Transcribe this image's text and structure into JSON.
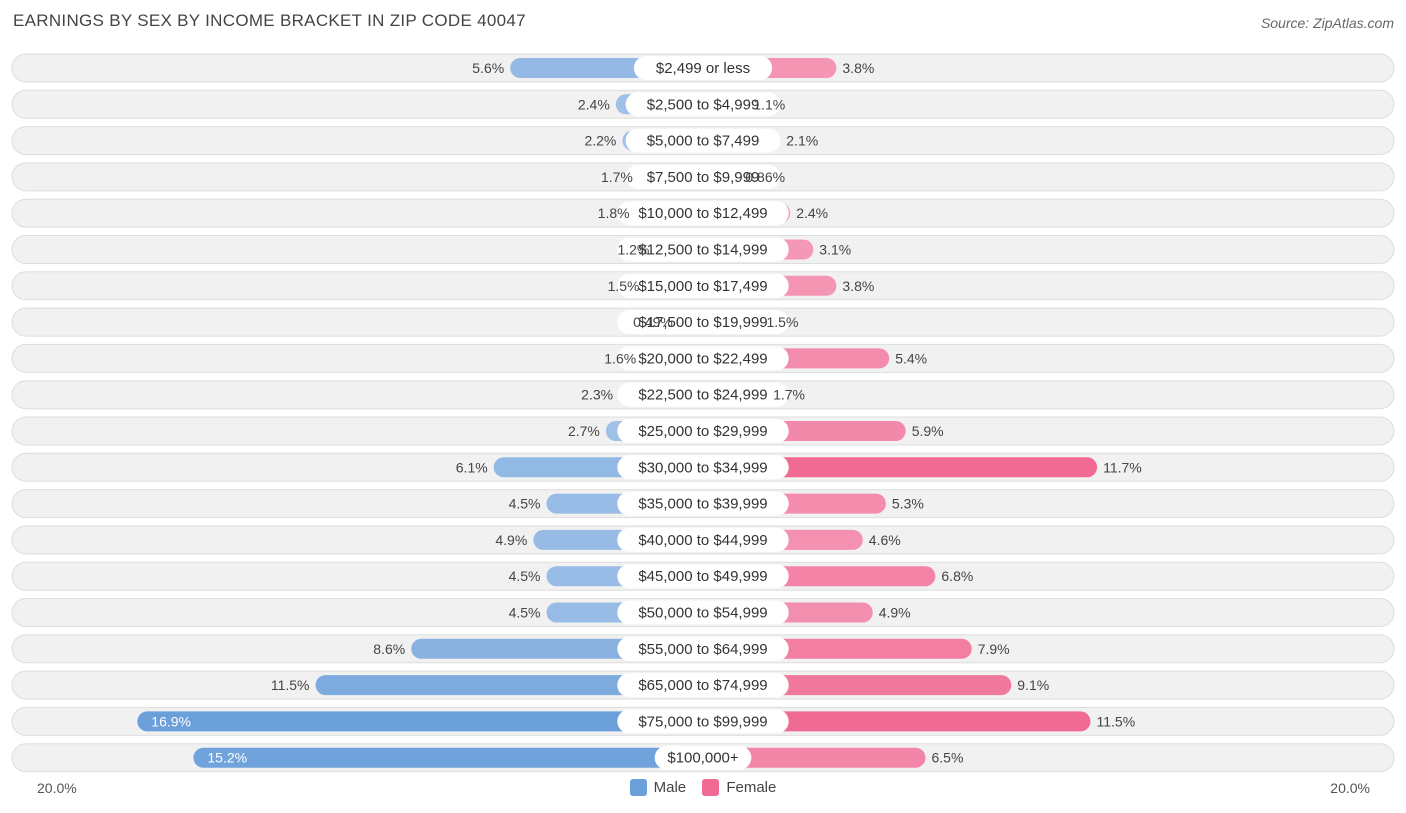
{
  "header": {
    "title": "EARNINGS BY SEX BY INCOME BRACKET IN ZIP CODE 40047",
    "source": "Source: ZipAtlas.com"
  },
  "axis": {
    "left_label": "20.0%",
    "right_label": "20.0%"
  },
  "legend": {
    "male_label": "Male",
    "female_label": "Female"
  },
  "colors": {
    "male_light": "#a9c6ea",
    "male_dark": "#6a9fd9",
    "female_light": "#f6a9c2",
    "female_dark": "#f06a93",
    "row_bg": "#f1f1f1",
    "row_border": "#dddddd"
  },
  "chart_data": {
    "type": "bar",
    "orientation": "horizontal-diverging",
    "title": "EARNINGS BY SEX BY INCOME BRACKET IN ZIP CODE 40047",
    "xlim": [
      -20,
      20
    ],
    "categories": [
      "$2,499 or less",
      "$2,500 to $4,999",
      "$5,000 to $7,499",
      "$7,500 to $9,999",
      "$10,000 to $12,499",
      "$12,500 to $14,999",
      "$15,000 to $17,499",
      "$17,500 to $19,999",
      "$20,000 to $22,499",
      "$22,500 to $24,999",
      "$25,000 to $29,999",
      "$30,000 to $34,999",
      "$35,000 to $39,999",
      "$40,000 to $44,999",
      "$45,000 to $49,999",
      "$50,000 to $54,999",
      "$55,000 to $64,999",
      "$65,000 to $74,999",
      "$75,000 to $99,999",
      "$100,000+"
    ],
    "series": [
      {
        "name": "Male",
        "values": [
          5.6,
          2.4,
          2.2,
          1.7,
          1.8,
          1.2,
          1.5,
          0.49,
          1.6,
          2.3,
          2.7,
          6.1,
          4.5,
          4.9,
          4.5,
          4.5,
          8.6,
          11.5,
          16.9,
          15.2
        ],
        "labels": [
          "5.6%",
          "2.4%",
          "2.2%",
          "1.7%",
          "1.8%",
          "1.2%",
          "1.5%",
          "0.49%",
          "1.6%",
          "2.3%",
          "2.7%",
          "6.1%",
          "4.5%",
          "4.9%",
          "4.5%",
          "4.5%",
          "8.6%",
          "11.5%",
          "16.9%",
          "15.2%"
        ]
      },
      {
        "name": "Female",
        "values": [
          3.8,
          1.1,
          2.1,
          0.86,
          2.4,
          3.1,
          3.8,
          1.5,
          5.4,
          1.7,
          5.9,
          11.7,
          5.3,
          4.6,
          6.8,
          4.9,
          7.9,
          9.1,
          11.5,
          6.5
        ],
        "labels": [
          "3.8%",
          "1.1%",
          "2.1%",
          "0.86%",
          "2.4%",
          "3.1%",
          "3.8%",
          "1.5%",
          "5.4%",
          "1.7%",
          "5.9%",
          "11.7%",
          "5.3%",
          "4.6%",
          "6.8%",
          "4.9%",
          "7.9%",
          "9.1%",
          "11.5%",
          "6.5%"
        ]
      }
    ]
  }
}
